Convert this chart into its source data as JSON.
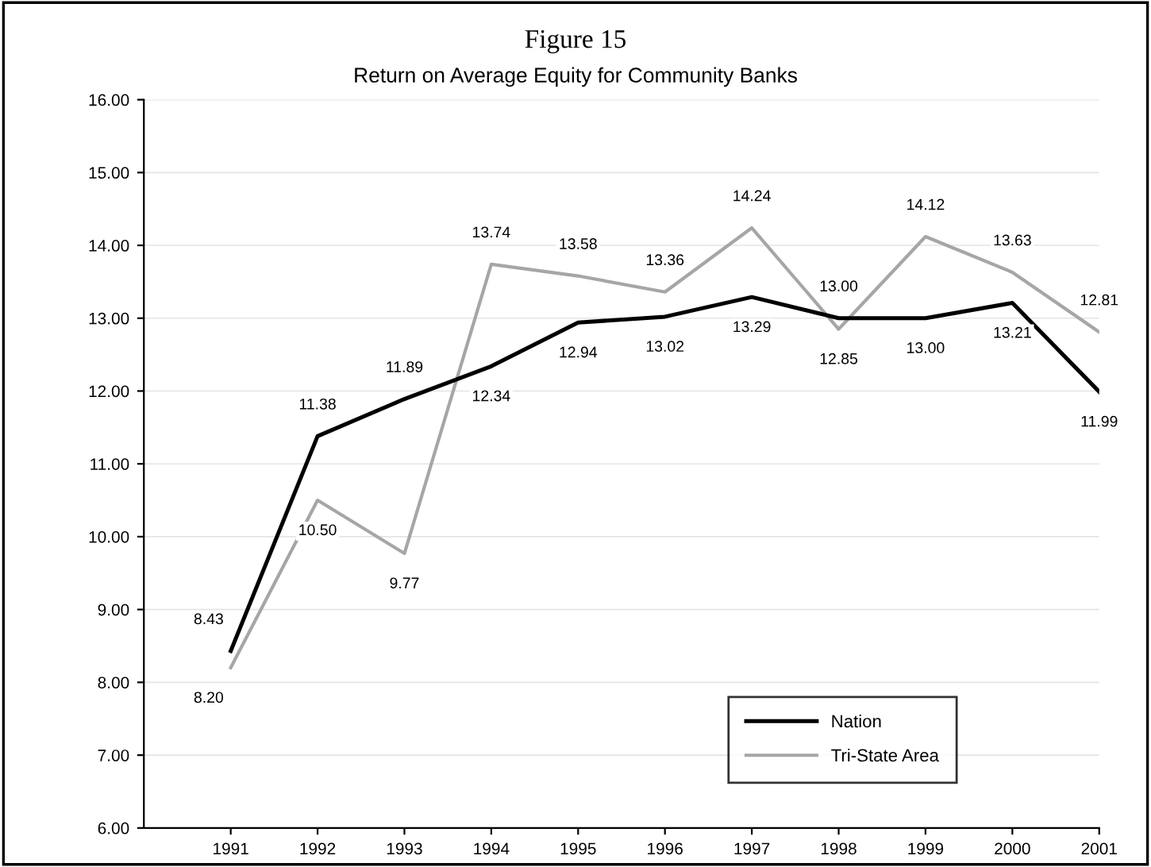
{
  "chart_data": {
    "type": "line",
    "title": "Figure 15",
    "subtitle": "Return on Average Equity for Community Banks",
    "categories": [
      "1991",
      "1992",
      "1993",
      "1994",
      "1995",
      "1996",
      "1997",
      "1998",
      "1999",
      "2000",
      "2001"
    ],
    "series": [
      {
        "name": "Nation",
        "color": "#000000",
        "values": [
          8.43,
          11.38,
          11.89,
          12.34,
          12.94,
          13.02,
          13.29,
          13.0,
          13.0,
          13.21,
          11.99
        ],
        "value_labels": [
          "8.43",
          "11.38",
          "11.89",
          "12.34",
          "12.94",
          "13.02",
          "13.29",
          "13.00",
          "13.00",
          "13.21",
          "11.99"
        ]
      },
      {
        "name": "Tri-State Area",
        "color": "#a6a6a6",
        "values": [
          8.2,
          10.5,
          9.77,
          13.74,
          13.58,
          13.36,
          14.24,
          12.85,
          14.12,
          13.63,
          12.81
        ],
        "value_labels": [
          "8.20",
          "10.50",
          "9.77",
          "13.74",
          "13.58",
          "13.36",
          "14.24",
          "12.85",
          "14.12",
          "13.63",
          "12.81"
        ]
      }
    ],
    "ylim": [
      6,
      16
    ],
    "yticks": [
      {
        "value": 6,
        "label": "6.00"
      },
      {
        "value": 7,
        "label": "7.00"
      },
      {
        "value": 8,
        "label": "8.00"
      },
      {
        "value": 9,
        "label": "9.00"
      },
      {
        "value": 10,
        "label": "10.00"
      },
      {
        "value": 11,
        "label": "11.00"
      },
      {
        "value": 12,
        "label": "12.00"
      },
      {
        "value": 13,
        "label": "13.00"
      },
      {
        "value": 14,
        "label": "14.00"
      },
      {
        "value": 15,
        "label": "15.00"
      },
      {
        "value": 16,
        "label": "16.00"
      }
    ],
    "grid": "y",
    "legend": "bottom right",
    "marker": "none",
    "line_style": "solid"
  }
}
